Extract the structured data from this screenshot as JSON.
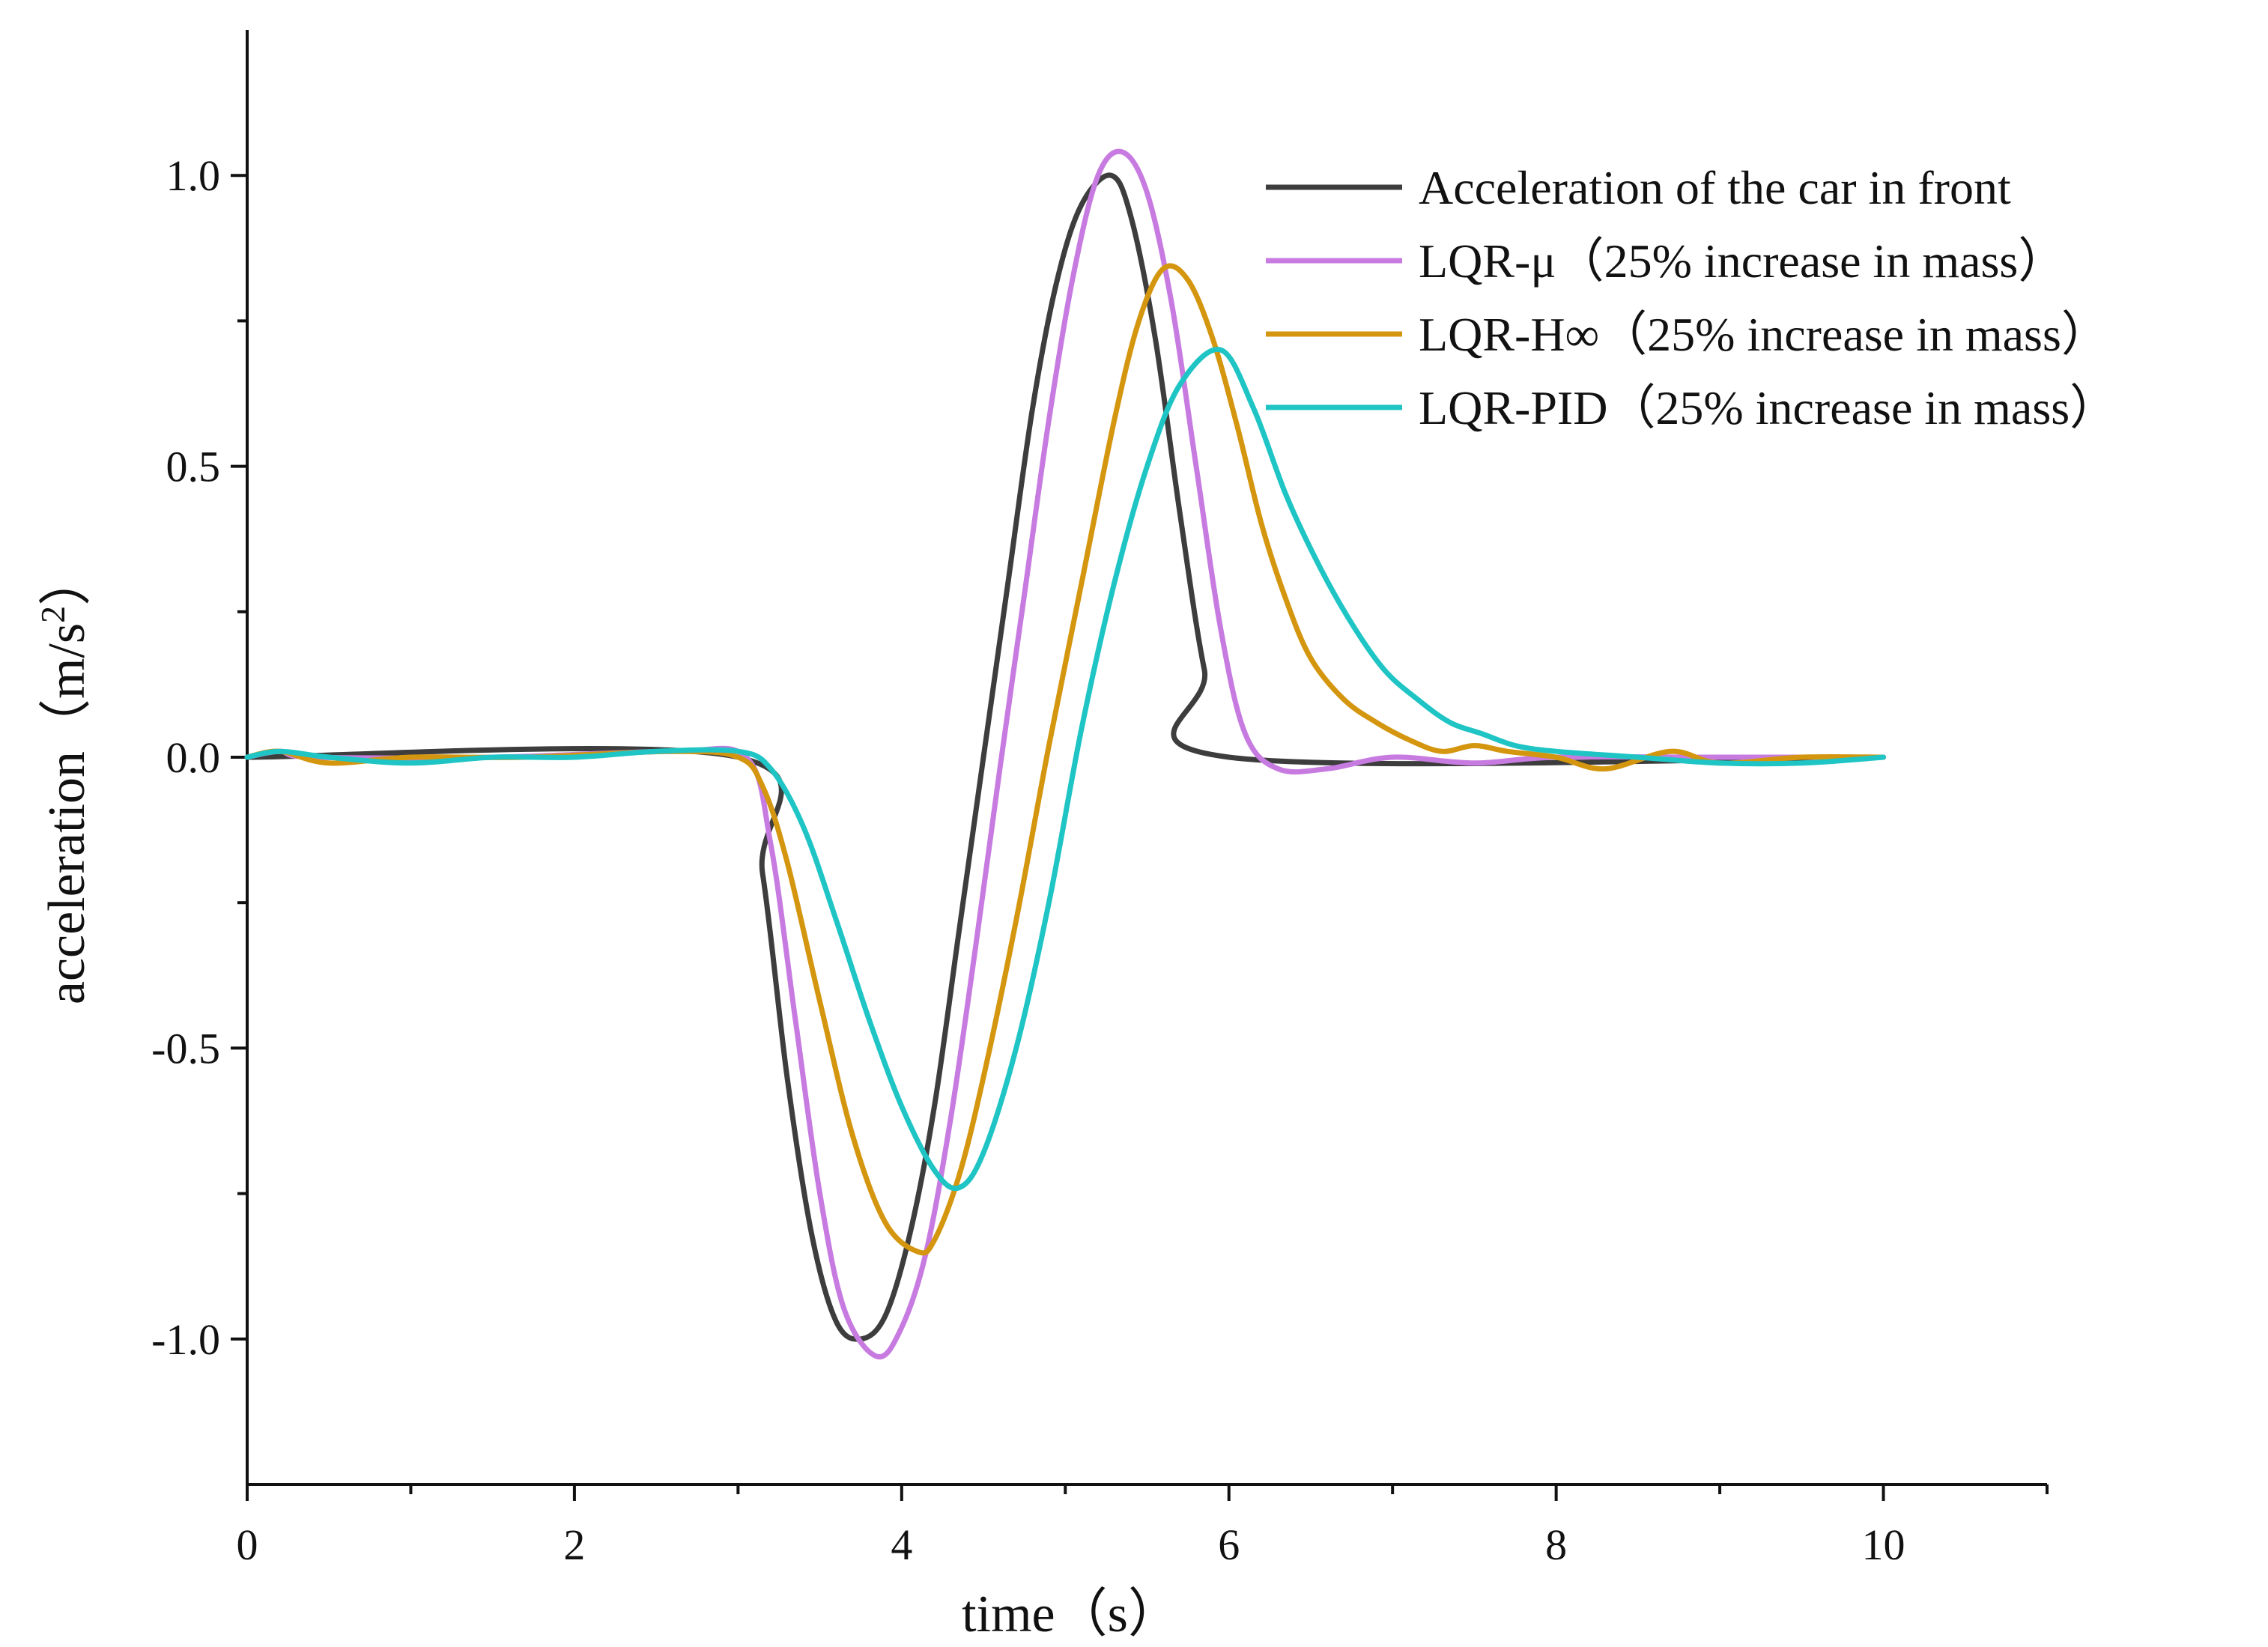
{
  "chart_data": {
    "type": "line",
    "title": "",
    "xlabel": "time（s）",
    "ylabel_main": "acceleration（m/s",
    "ylabel_sup": "2",
    "ylabel_close": "）",
    "xlim": [
      0,
      11
    ],
    "ylim": [
      -1.25,
      1.25
    ],
    "x_ticks": [
      {
        "value": 0,
        "label": "0"
      },
      {
        "value": 2,
        "label": "2"
      },
      {
        "value": 4,
        "label": "4"
      },
      {
        "value": 6,
        "label": "6"
      },
      {
        "value": 8,
        "label": "8"
      },
      {
        "value": 10,
        "label": "10"
      }
    ],
    "x_minor_ticks": [
      1,
      3,
      5,
      7,
      9,
      11
    ],
    "y_ticks": [
      {
        "value": 1.0,
        "label": "1.0"
      },
      {
        "value": 0.5,
        "label": "0.5"
      },
      {
        "value": 0.0,
        "label": "0.0"
      },
      {
        "value": -0.5,
        "label": "-0.5"
      },
      {
        "value": -1.0,
        "label": "-1.0"
      }
    ],
    "y_minor_ticks": [
      0.75,
      0.25,
      -0.25,
      -0.75
    ],
    "grid": false,
    "legend_position": "top-right",
    "series": [
      {
        "name": "Acceleration of the car in front",
        "color": "#3d3d3d",
        "x": [
          0,
          3.0,
          3.15,
          3.3,
          3.45,
          3.6,
          3.75,
          3.9,
          4.05,
          4.2,
          4.35,
          4.5,
          4.65,
          4.8,
          4.95,
          5.1,
          5.28,
          5.4,
          5.55,
          5.7,
          5.85,
          6.0,
          10
        ],
        "y": [
          0,
          0,
          -0.2,
          -0.55,
          -0.82,
          -0.97,
          -1.0,
          -0.96,
          -0.82,
          -0.6,
          -0.3,
          0.0,
          0.3,
          0.6,
          0.82,
          0.95,
          1.0,
          0.93,
          0.72,
          0.42,
          0.15,
          0.0,
          0.0
        ]
      },
      {
        "name": "LQR-μ（25% increase in mass）",
        "color": "#c77be0",
        "x": [
          0,
          0.2,
          0.4,
          1.5,
          2.6,
          3.05,
          3.2,
          3.35,
          3.5,
          3.65,
          3.85,
          4.0,
          4.15,
          4.3,
          4.45,
          4.6,
          4.75,
          4.9,
          5.05,
          5.2,
          5.35,
          5.5,
          5.65,
          5.8,
          5.95,
          6.1,
          6.3,
          6.6,
          7.0,
          7.5,
          8.0,
          9.0,
          10.0
        ],
        "y": [
          0,
          0.01,
          0,
          0,
          0.01,
          0,
          -0.15,
          -0.45,
          -0.75,
          -0.95,
          -1.03,
          -0.98,
          -0.85,
          -0.62,
          -0.33,
          -0.02,
          0.28,
          0.58,
          0.83,
          1.0,
          1.04,
          0.97,
          0.78,
          0.5,
          0.22,
          0.04,
          -0.02,
          -0.02,
          0.0,
          -0.01,
          0.0,
          0.0,
          0.0
        ]
      },
      {
        "name": "LQR-H∞（25% increase in mass）",
        "color": "#d4960f",
        "x": [
          0,
          0.2,
          0.5,
          1.0,
          1.7,
          2.6,
          3.0,
          3.15,
          3.3,
          3.5,
          3.7,
          3.9,
          4.1,
          4.2,
          4.35,
          4.5,
          4.7,
          4.9,
          5.1,
          5.3,
          5.45,
          5.6,
          5.75,
          5.9,
          6.05,
          6.2,
          6.35,
          6.5,
          6.7,
          6.9,
          7.1,
          7.3,
          7.5,
          7.7,
          8.0,
          8.3,
          8.7,
          9.0,
          9.5,
          10.0
        ],
        "y": [
          0,
          0.01,
          -0.01,
          0,
          0.0,
          0.01,
          0.0,
          -0.05,
          -0.18,
          -0.42,
          -0.65,
          -0.8,
          -0.85,
          -0.83,
          -0.72,
          -0.55,
          -0.28,
          0.02,
          0.3,
          0.58,
          0.75,
          0.84,
          0.82,
          0.72,
          0.57,
          0.4,
          0.27,
          0.17,
          0.1,
          0.06,
          0.03,
          0.01,
          0.02,
          0.01,
          0.0,
          -0.02,
          0.01,
          -0.01,
          0.0,
          0.0
        ]
      },
      {
        "name": "LQR-PID（25% increase in mass）",
        "color": "#1fc4c4",
        "x": [
          0,
          0.2,
          0.5,
          1.0,
          1.5,
          2.0,
          2.5,
          3.0,
          3.2,
          3.4,
          3.6,
          3.8,
          4.0,
          4.2,
          4.35,
          4.5,
          4.7,
          4.9,
          5.1,
          5.3,
          5.5,
          5.7,
          5.95,
          6.15,
          6.35,
          6.55,
          6.75,
          6.95,
          7.15,
          7.35,
          7.55,
          7.75,
          8.0,
          8.5,
          9.0,
          9.5,
          10.0
        ],
        "y": [
          0,
          0.01,
          0,
          -0.01,
          0,
          0,
          0.01,
          0.01,
          -0.02,
          -0.12,
          -0.28,
          -0.45,
          -0.6,
          -0.71,
          -0.74,
          -0.68,
          -0.5,
          -0.25,
          0.05,
          0.3,
          0.5,
          0.64,
          0.7,
          0.6,
          0.45,
          0.33,
          0.23,
          0.15,
          0.1,
          0.06,
          0.04,
          0.02,
          0.01,
          0.0,
          -0.01,
          -0.01,
          0.0
        ]
      }
    ]
  }
}
